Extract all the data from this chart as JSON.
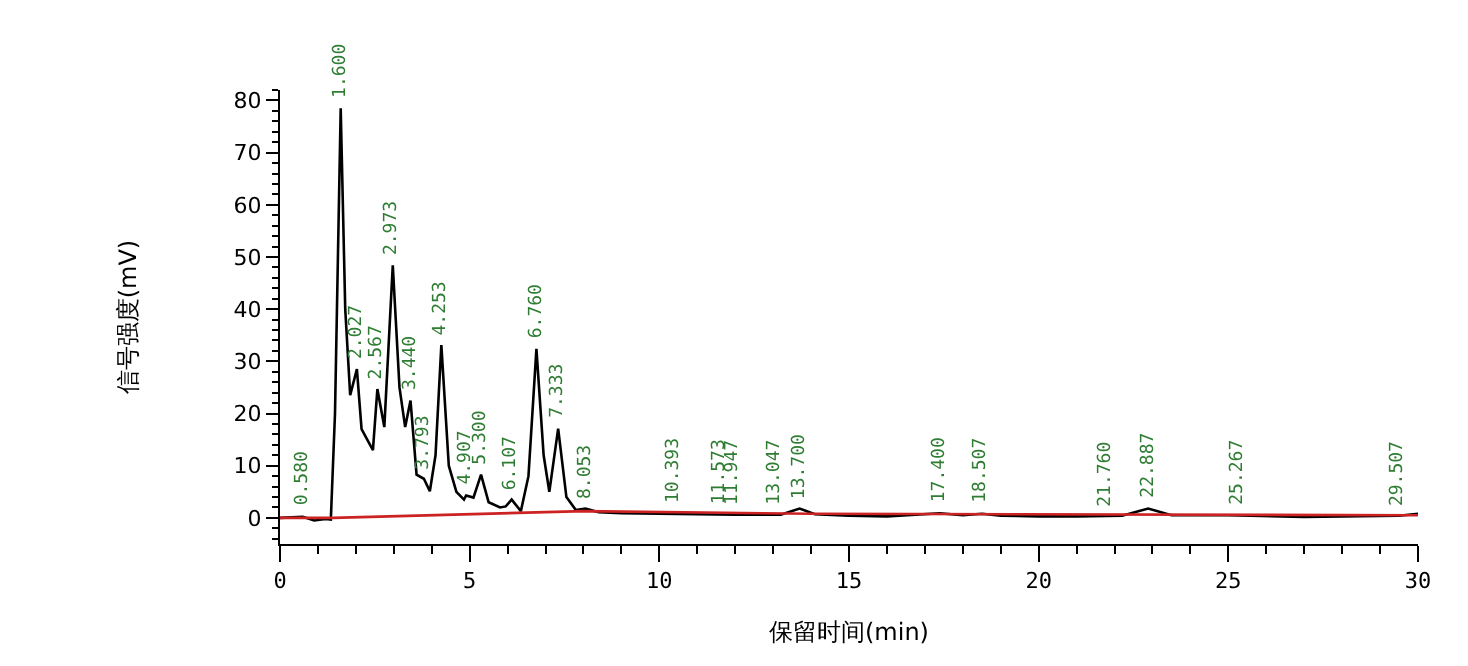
{
  "chart_data": {
    "type": "line",
    "xlabel": "保留时间(min)",
    "ylabel": "信号强度(mV)",
    "xlim": [
      0,
      30
    ],
    "ylim": [
      -5,
      82
    ],
    "xticks": [
      0,
      5,
      10,
      15,
      20,
      25,
      30
    ],
    "yticks": [
      0,
      10,
      20,
      30,
      40,
      50,
      60,
      70,
      80
    ],
    "line_style": "solid",
    "marker": "none",
    "series": [
      {
        "color": "#000000",
        "x": [
          0,
          0.6,
          0.9,
          1.2,
          1.34,
          1.45,
          1.6,
          1.72,
          1.85,
          2.027,
          2.15,
          2.3,
          2.45,
          2.567,
          2.75,
          2.973,
          3.15,
          3.3,
          3.44,
          3.6,
          3.793,
          3.95,
          4.1,
          4.253,
          4.45,
          4.65,
          4.85,
          4.907,
          5.1,
          5.3,
          5.5,
          5.8,
          5.95,
          6.107,
          6.35,
          6.55,
          6.76,
          6.95,
          7.1,
          7.333,
          7.55,
          7.8,
          8.053,
          8.4,
          9,
          10,
          11,
          12,
          13.2,
          13.7,
          14.1,
          15,
          16,
          17.4,
          18,
          18.507,
          19,
          20,
          21,
          22.2,
          22.887,
          23.5,
          25,
          27,
          29.5,
          30
        ],
        "values": [
          0,
          0.2,
          -0.5,
          -0.2,
          -0.3,
          20,
          78.5,
          40,
          23.5,
          28.5,
          17,
          15,
          13,
          24.7,
          17.4,
          48.4,
          25,
          17.4,
          22.5,
          8.3,
          7.5,
          5.1,
          12,
          33.1,
          10,
          5,
          3.5,
          4.3,
          3.9,
          8.3,
          3,
          2,
          2.2,
          3.5,
          1.3,
          8,
          32.4,
          12,
          5,
          17.1,
          4,
          1.5,
          1.8,
          1.1,
          0.9,
          0.8,
          0.7,
          0.6,
          0.6,
          1.8,
          0.7,
          0.4,
          0.3,
          0.9,
          0.5,
          0.8,
          0.4,
          0.3,
          0.3,
          0.4,
          1.8,
          0.5,
          0.5,
          0.2,
          0.4,
          0.8
        ]
      },
      {
        "color": "#cc2222",
        "x": [
          0,
          1.4,
          8,
          14,
          30
        ],
        "values": [
          0,
          0,
          1.3,
          0.8,
          0.5
        ]
      }
    ],
    "annotations": [
      {
        "text": "0.580",
        "x": 0.58,
        "y": 0.3
      },
      {
        "text": "1.600",
        "x": 1.6,
        "y": 78.5
      },
      {
        "text": "2.027",
        "x": 2.027,
        "y": 28.5
      },
      {
        "text": "2.567",
        "x": 2.567,
        "y": 24.7
      },
      {
        "text": "2.973",
        "x": 2.973,
        "y": 48.4
      },
      {
        "text": "3.440",
        "x": 3.44,
        "y": 22.5
      },
      {
        "text": "3.793",
        "x": 3.793,
        "y": 7.5
      },
      {
        "text": "4.253",
        "x": 4.253,
        "y": 33.1
      },
      {
        "text": "4.907",
        "x": 4.907,
        "y": 4.3
      },
      {
        "text": "5.300",
        "x": 5.3,
        "y": 8.3
      },
      {
        "text": "6.107",
        "x": 6.107,
        "y": 3.5
      },
      {
        "text": "6.760",
        "x": 6.76,
        "y": 32.4
      },
      {
        "text": "7.333",
        "x": 7.333,
        "y": 17.1
      },
      {
        "text": "8.053",
        "x": 8.053,
        "y": 1.8
      },
      {
        "text": "10.393",
        "x": 10.393,
        "y": 0.8
      },
      {
        "text": "11.573",
        "x": 11.573,
        "y": 0.7
      },
      {
        "text": "11.947",
        "x": 11.947,
        "y": 0.6
      },
      {
        "text": "13.047",
        "x": 13.047,
        "y": 0.6
      },
      {
        "text": "13.700",
        "x": 13.7,
        "y": 1.8
      },
      {
        "text": "17.400",
        "x": 17.4,
        "y": 0.9
      },
      {
        "text": "18.507",
        "x": 18.507,
        "y": 0.8
      },
      {
        "text": "21.760",
        "x": 21.76,
        "y": 0.3
      },
      {
        "text": "22.887",
        "x": 22.887,
        "y": 1.8
      },
      {
        "text": "25.267",
        "x": 25.267,
        "y": 0.5
      },
      {
        "text": "29.507",
        "x": 29.507,
        "y": 0.4
      }
    ]
  }
}
